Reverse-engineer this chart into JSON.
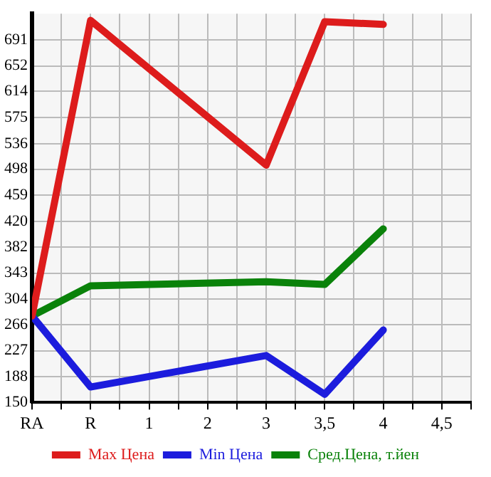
{
  "chart_data": {
    "type": "line",
    "categories": [
      "RA",
      "R",
      "1",
      "2",
      "3",
      "3,5",
      "4",
      "4,5"
    ],
    "series": [
      {
        "name": "Max Цена",
        "color": "#dd1c1c",
        "values": [
          279,
          720,
          null,
          null,
          504,
          718,
          714,
          null
        ]
      },
      {
        "name": "Min Цена",
        "color": "#1c1cdd",
        "values": [
          279,
          173,
          null,
          null,
          220,
          162,
          258,
          null
        ]
      },
      {
        "name": "Сред.Цена, т.йен",
        "color": "#0a820a",
        "values": [
          279,
          324,
          null,
          null,
          330,
          326,
          409,
          null
        ]
      }
    ],
    "ylim": [
      150,
      730
    ],
    "yticks": [
      150,
      188,
      227,
      266,
      304,
      343,
      382,
      420,
      459,
      498,
      536,
      575,
      614,
      652,
      691
    ],
    "grid": true,
    "legend": "bottom",
    "marker": "none",
    "line_style": "solid"
  }
}
